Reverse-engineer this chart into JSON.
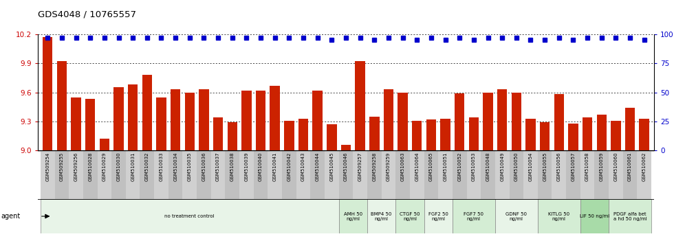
{
  "title": "GDS4048 / 10765557",
  "categories": [
    "GSM509254",
    "GSM509255",
    "GSM509256",
    "GSM510028",
    "GSM510029",
    "GSM510030",
    "GSM510031",
    "GSM510032",
    "GSM510033",
    "GSM510034",
    "GSM510035",
    "GSM510036",
    "GSM510037",
    "GSM510038",
    "GSM510039",
    "GSM510040",
    "GSM510041",
    "GSM510042",
    "GSM510043",
    "GSM510044",
    "GSM510045",
    "GSM510046",
    "GSM509257",
    "GSM509258",
    "GSM509259",
    "GSM510063",
    "GSM510064",
    "GSM510065",
    "GSM510051",
    "GSM510052",
    "GSM510053",
    "GSM510048",
    "GSM510049",
    "GSM510050",
    "GSM510054",
    "GSM510055",
    "GSM510056",
    "GSM510057",
    "GSM510058",
    "GSM510059",
    "GSM510060",
    "GSM510061",
    "GSM510062"
  ],
  "bar_values": [
    10.17,
    9.92,
    9.55,
    9.53,
    9.12,
    9.65,
    9.68,
    9.78,
    9.55,
    9.63,
    9.6,
    9.63,
    9.34,
    9.29,
    9.62,
    9.62,
    9.67,
    9.31,
    9.33,
    9.62,
    9.27,
    9.06,
    9.92,
    9.35,
    9.63,
    9.6,
    9.31,
    9.32,
    9.33,
    9.59,
    9.34,
    9.6,
    9.63,
    9.6,
    9.33,
    9.29,
    9.58,
    9.28,
    9.34,
    9.37,
    9.31,
    9.44,
    9.33
  ],
  "percentile_values": [
    97,
    97,
    97,
    97,
    97,
    97,
    97,
    97,
    97,
    97,
    97,
    97,
    97,
    97,
    97,
    97,
    97,
    97,
    97,
    97,
    95,
    97,
    97,
    95,
    97,
    97,
    95,
    97,
    95,
    97,
    95,
    97,
    97,
    97,
    95,
    95,
    97,
    95,
    97,
    97,
    97,
    97,
    95
  ],
  "agent_groups": [
    {
      "label": "no treatment control",
      "start": 0,
      "end": 21,
      "color": "#e8f4e8"
    },
    {
      "label": "AMH 50\nng/ml",
      "start": 21,
      "end": 23,
      "color": "#d4edd4"
    },
    {
      "label": "BMP4 50\nng/ml",
      "start": 23,
      "end": 25,
      "color": "#e8f4e8"
    },
    {
      "label": "CTGF 50\nng/ml",
      "start": 25,
      "end": 27,
      "color": "#d4edd4"
    },
    {
      "label": "FGF2 50\nng/ml",
      "start": 27,
      "end": 29,
      "color": "#e8f4e8"
    },
    {
      "label": "FGF7 50\nng/ml",
      "start": 29,
      "end": 32,
      "color": "#d4edd4"
    },
    {
      "label": "GDNF 50\nng/ml",
      "start": 32,
      "end": 35,
      "color": "#e8f4e8"
    },
    {
      "label": "KITLG 50\nng/ml",
      "start": 35,
      "end": 38,
      "color": "#d4edd4"
    },
    {
      "label": "LIF 50 ng/ml",
      "start": 38,
      "end": 40,
      "color": "#a8dba8"
    },
    {
      "label": "PDGF alfa bet\na hd 50 ng/ml",
      "start": 40,
      "end": 43,
      "color": "#d4edd4"
    }
  ],
  "bar_color": "#cc2200",
  "percentile_color": "#0000cc",
  "title_color": "#000000",
  "left_axis_color": "#cc0000",
  "right_axis_color": "#0000cc",
  "ylim_left": [
    9.0,
    10.2
  ],
  "ylim_right": [
    0,
    100
  ],
  "yticks_left": [
    9.0,
    9.3,
    9.6,
    9.9,
    10.2
  ],
  "yticks_right": [
    0,
    25,
    50,
    75,
    100
  ],
  "background_color": "#ffffff",
  "grid_color": "#000000"
}
